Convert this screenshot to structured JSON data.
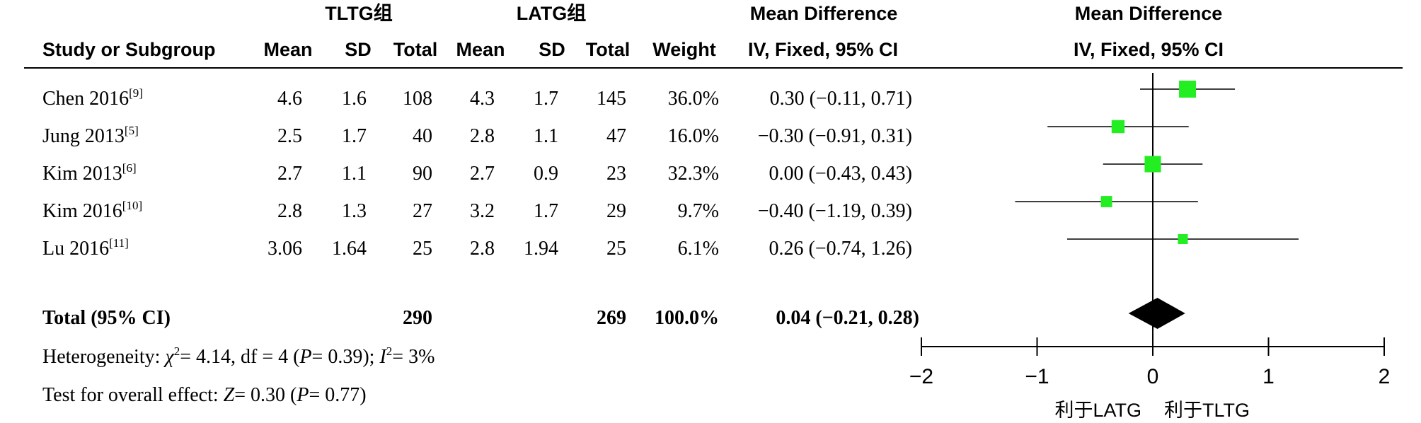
{
  "headers": {
    "group1": "TLTG组",
    "group2": "LATG组",
    "md_top": "Mean Difference",
    "plot_top": "Mean Difference",
    "study": "Study or Subgroup",
    "mean": "Mean",
    "sd": "SD",
    "total": "Total",
    "weight": "Weight",
    "md_sub": "IV, Fixed, 95% CI",
    "plot_sub": "IV, Fixed, 95% CI"
  },
  "studies": [
    {
      "name": "Chen 2016",
      "ref": "[9]",
      "m1": "4.6",
      "sd1": "1.6",
      "n1": "108",
      "m2": "4.3",
      "sd2": "1.7",
      "n2": "145",
      "weight": "36.0%",
      "ci": "0.30 (−0.11, 0.71)"
    },
    {
      "name": "Jung 2013",
      "ref": "[5]",
      "m1": "2.5",
      "sd1": "1.7",
      "n1": "40",
      "m2": "2.8",
      "sd2": "1.1",
      "n2": "47",
      "weight": "16.0%",
      "ci": "−0.30 (−0.91, 0.31)"
    },
    {
      "name": "Kim 2013",
      "ref": "[6]",
      "m1": "2.7",
      "sd1": "1.1",
      "n1": "90",
      "m2": "2.7",
      "sd2": "0.9",
      "n2": "23",
      "weight": "32.3%",
      "ci": "0.00 (−0.43, 0.43)"
    },
    {
      "name": "Kim 2016",
      "ref": "[10]",
      "m1": "2.8",
      "sd1": "1.3",
      "n1": "27",
      "m2": "3.2",
      "sd2": "1.7",
      "n2": "29",
      "weight": "9.7%",
      "ci": "−0.40 (−1.19, 0.39)"
    },
    {
      "name": "Lu 2016",
      "ref": "[11]",
      "m1": "3.06",
      "sd1": "1.64",
      "n1": "25",
      "m2": "2.8",
      "sd2": "1.94",
      "n2": "25",
      "weight": "6.1%",
      "ci": "0.26 (−0.74, 1.26)"
    }
  ],
  "total": {
    "label": "Total (95% CI)",
    "n1": "290",
    "n2": "269",
    "weight": "100.0%",
    "ci": "0.04 (−0.21, 0.28)"
  },
  "heterogeneity": {
    "prefix": "Heterogeneity: ",
    "chi": "χ",
    "chi_val": "= 4.14, df = 4 (",
    "p": "P",
    "p_val": "= 0.39); ",
    "i": "I",
    "i_val": "= 3%",
    "sup2": "2"
  },
  "overall": {
    "prefix": "Test for overall effect: ",
    "z": "Z",
    "z_val": "= 0.30 (",
    "p": "P",
    "p_val": "= 0.77)"
  },
  "favor": {
    "left": "利于LATG",
    "right": "利于TLTG"
  },
  "chart_data": {
    "type": "forest",
    "xlim": [
      -2,
      2
    ],
    "ticks": [
      "−2",
      "−1",
      "0",
      "1",
      "2"
    ],
    "tick_values": [
      -2,
      -1,
      0,
      1,
      2
    ],
    "marker_color": "#22ee22",
    "diamond_color": "#000000",
    "studies": [
      {
        "label": "Chen 2016",
        "md": 0.3,
        "lo": -0.11,
        "hi": 0.71,
        "weight": 36.0
      },
      {
        "label": "Jung 2013",
        "md": -0.3,
        "lo": -0.91,
        "hi": 0.31,
        "weight": 16.0
      },
      {
        "label": "Kim 2013",
        "md": 0.0,
        "lo": -0.43,
        "hi": 0.43,
        "weight": 32.3
      },
      {
        "label": "Kim 2016",
        "md": -0.4,
        "lo": -1.19,
        "hi": 0.39,
        "weight": 9.7
      },
      {
        "label": "Lu 2016",
        "md": 0.26,
        "lo": -0.74,
        "hi": 1.26,
        "weight": 6.1
      }
    ],
    "pooled": {
      "md": 0.04,
      "lo": -0.21,
      "hi": 0.28
    }
  }
}
